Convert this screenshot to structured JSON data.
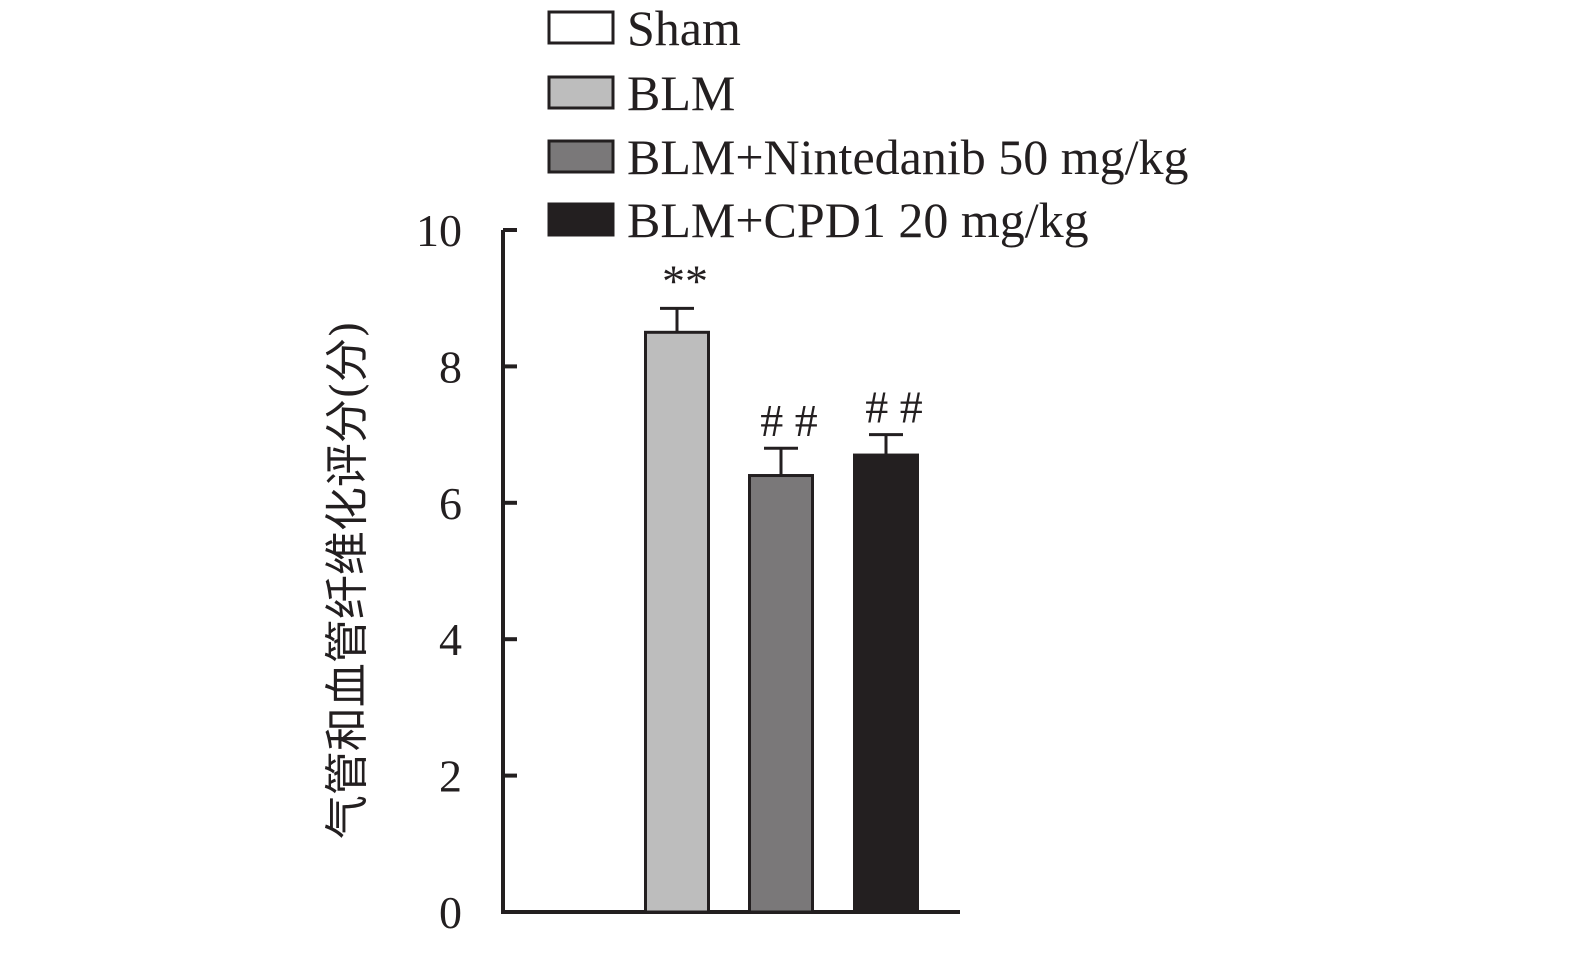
{
  "chart_data": {
    "type": "bar",
    "title": "",
    "xlabel": "",
    "ylabel": "气管和血管纤维化评分(分)",
    "ylim": [
      0,
      10
    ],
    "yticks": [
      0,
      2,
      4,
      6,
      8,
      10
    ],
    "grid": false,
    "legend_position": "top",
    "categories": [
      "Sham",
      "BLM",
      "BLM+Nintedanib 50 mg/kg",
      "BLM+CPD1 20 mg/kg"
    ],
    "series": [
      {
        "values": [
          0,
          8.5,
          6.4,
          6.7
        ],
        "errors": [
          0,
          0.35,
          0.4,
          0.3
        ],
        "colors": [
          "#ffffff",
          "#bdbdbd",
          "#7a7879",
          "#231f20"
        ]
      }
    ],
    "legend": [
      {
        "label": "Sham",
        "color": "#ffffff"
      },
      {
        "label": "BLM",
        "color": "#bdbdbd"
      },
      {
        "label": "BLM+Nintedanib 50 mg/kg",
        "color": "#7a7879"
      },
      {
        "label": "BLM+CPD1 20 mg/kg",
        "color": "#231f20"
      }
    ],
    "annotations": [
      "",
      "**",
      "# #",
      "# #"
    ]
  }
}
